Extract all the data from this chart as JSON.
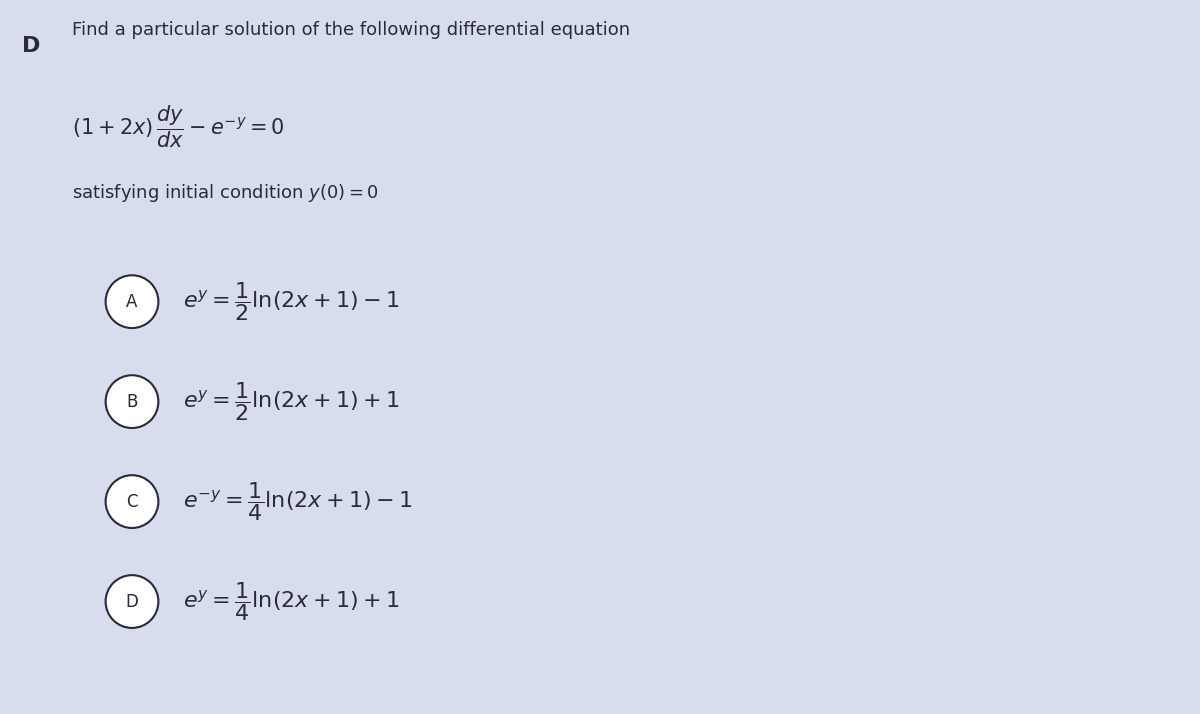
{
  "background_color": "#d8dded",
  "left_label": "D",
  "title": "Find a particular solution of the following differential equation",
  "eq_main": "$(1+2x)\\,\\dfrac{dy}{dx} - e^{-y}=0$",
  "initial_condition": "satisfying initial condition $y(0)=0$",
  "options": [
    {
      "label": "A",
      "box_color": "#c5cbdf",
      "text": "$e^y=\\dfrac{1}{2}\\ln(2x+1)-1$"
    },
    {
      "label": "B",
      "box_color": "#c5cbdf",
      "text": "$e^y=\\dfrac{1}{2}\\ln(2x+1)+1$"
    },
    {
      "label": "C",
      "box_color": "#c5cbdf",
      "text": "$e^{-y}=\\dfrac{1}{4}\\ln(2x+1)-1$"
    },
    {
      "label": "D",
      "box_color": "#c5cbdf",
      "text": "$e^y=\\dfrac{1}{4}\\ln(2x+1)+1$"
    }
  ],
  "text_color": "#2a2a3a",
  "figwidth": 12.0,
  "figheight": 7.14,
  "dpi": 100
}
